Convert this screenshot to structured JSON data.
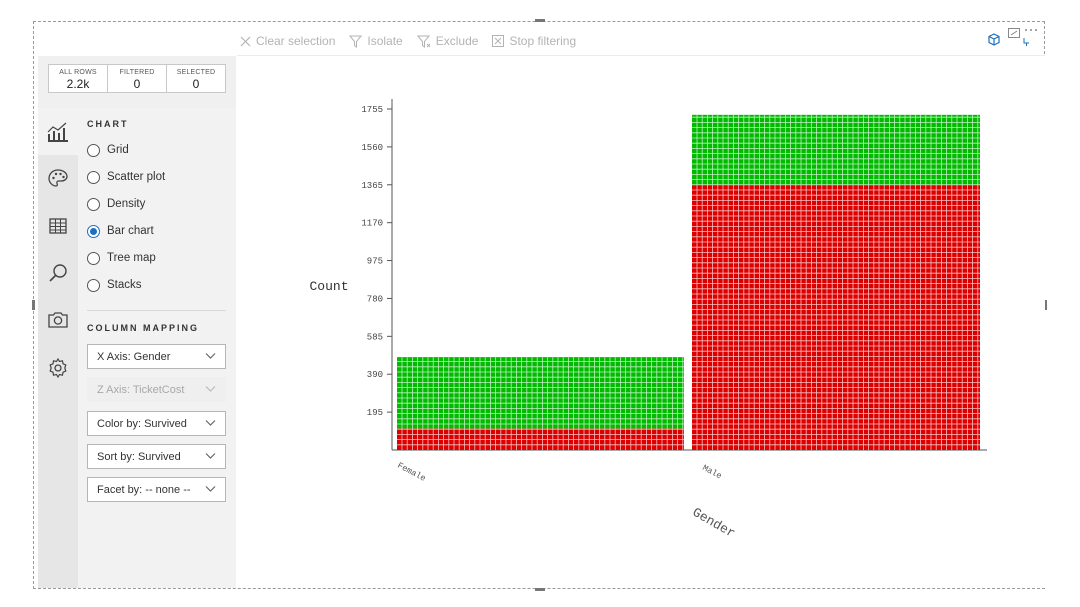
{
  "toolbar": {
    "clear_selection": "Clear selection",
    "isolate": "Isolate",
    "exclude": "Exclude",
    "stop_filtering": "Stop filtering"
  },
  "stats": {
    "all_rows_label": "ALL ROWS",
    "all_rows_value": "2.2k",
    "filtered_label": "FILTERED",
    "filtered_value": "0",
    "selected_label": "SELECTED",
    "selected_value": "0"
  },
  "sidebar": {
    "icons": [
      "chart-icon",
      "palette-icon",
      "table-icon",
      "search-icon",
      "camera-icon",
      "settings-icon"
    ]
  },
  "chart_section": {
    "title": "CHART",
    "options": [
      {
        "label": "Grid",
        "selected": false
      },
      {
        "label": "Scatter plot",
        "selected": false
      },
      {
        "label": "Density",
        "selected": false
      },
      {
        "label": "Bar chart",
        "selected": true
      },
      {
        "label": "Tree map",
        "selected": false
      },
      {
        "label": "Stacks",
        "selected": false
      }
    ]
  },
  "mapping_section": {
    "title": "COLUMN MAPPING",
    "x_axis": "X Axis: Gender",
    "z_axis": "Z Axis: TicketCost",
    "color_by": "Color by: Survived",
    "sort_by": "Sort by: Survived",
    "facet_by": "Facet by: -- none --"
  },
  "colors": {
    "survived": "#00bb00",
    "not_survived": "#dd0000",
    "accent": "#1e6fbf"
  },
  "chart_data": {
    "type": "bar",
    "xlabel": "Gender",
    "ylabel": "Count",
    "categories": [
      "Female",
      "Male"
    ],
    "yticks": [
      195,
      390,
      585,
      780,
      975,
      1170,
      1365,
      1560,
      1755
    ],
    "ylim": [
      0,
      1755
    ],
    "series": [
      {
        "values": [
          111,
          1365
        ]
      },
      {
        "values": [
          367,
          360
        ]
      }
    ]
  }
}
